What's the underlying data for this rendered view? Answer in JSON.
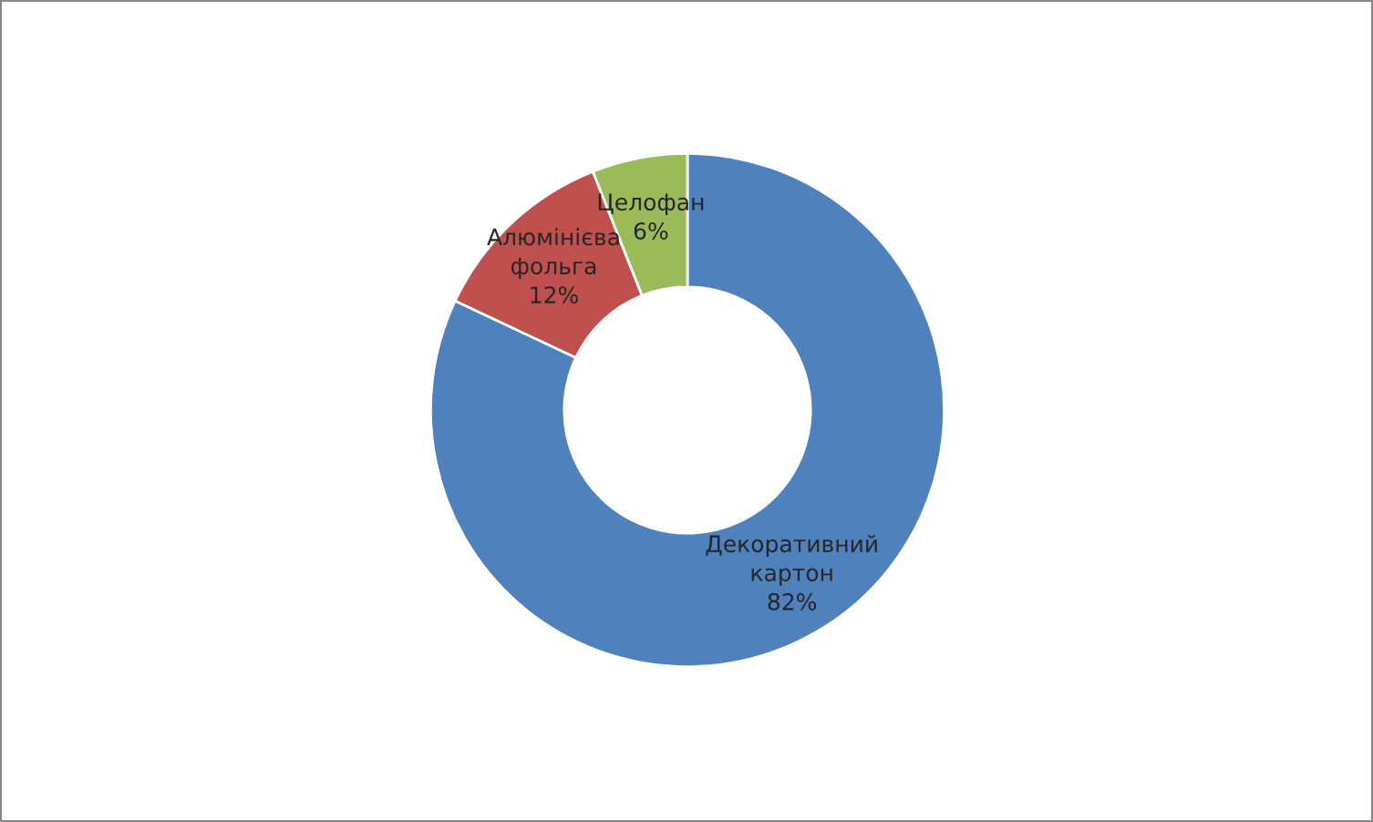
{
  "chart_data": {
    "type": "donut",
    "categories": [
      "Декоративний картон",
      "Алюмінієва фольга",
      "Целофан"
    ],
    "values": [
      82,
      12,
      6
    ],
    "colors": [
      "#4f81bd",
      "#c0504d",
      "#9bbb59"
    ],
    "value_labels": [
      "82%",
      "12%",
      "6%"
    ],
    "legend": false
  }
}
